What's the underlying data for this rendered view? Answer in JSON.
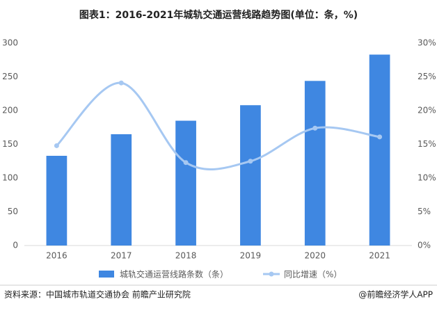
{
  "chart_data": {
    "type": "combo",
    "title": "图表1：2016-2021年城轨交通运营线路趋势图(单位：条，%)",
    "categories": [
      "2016",
      "2017",
      "2018",
      "2019",
      "2020",
      "2021"
    ],
    "series": [
      {
        "name": "城轨交通运营线路条数（条）",
        "type": "bar",
        "color": "#3f87e1",
        "values": [
          133,
          165,
          185,
          208,
          244,
          283
        ]
      },
      {
        "name": "同比增速（%）",
        "type": "line",
        "axis": "y2",
        "color": "#a6c8f2",
        "values": [
          14.8,
          24.1,
          12.3,
          12.5,
          17.4,
          16.1
        ]
      }
    ],
    "ylim": [
      0,
      300
    ],
    "yticks": [
      0,
      50,
      100,
      150,
      200,
      250,
      300
    ],
    "y2lim": [
      0,
      30
    ],
    "y2ticks": [
      {
        "value": 0,
        "label": "0%"
      },
      {
        "value": 5,
        "label": "5%"
      },
      {
        "value": 10,
        "label": "10%"
      },
      {
        "value": 15,
        "label": "15%"
      },
      {
        "value": 20,
        "label": "20%"
      },
      {
        "value": 25,
        "label": "25%"
      },
      {
        "value": 30,
        "label": "30%"
      }
    ],
    "grid": false,
    "source": "资料来源：中国城市轨道交通协会 前瞻产业研究院",
    "credit": "@前瞻经济学人APP"
  }
}
